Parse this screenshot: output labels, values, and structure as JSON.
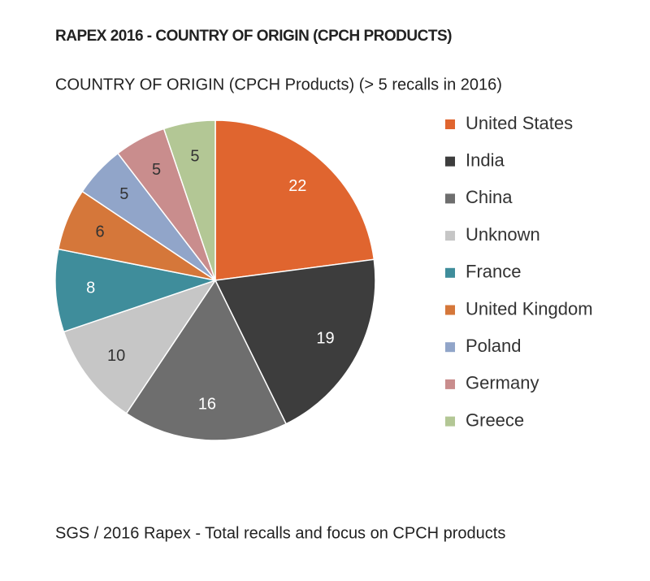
{
  "chart_data": {
    "type": "pie",
    "title": "RAPEX 2016 - COUNTRY OF ORIGIN (CPCH PRODUCTS)",
    "subtitle": "COUNTRY OF ORIGIN (CPCH Products) (> 5 recalls in 2016)",
    "caption": "SGS / 2016 Rapex - Total recalls and focus on CPCH products",
    "categories": [
      "United States",
      "India",
      "China",
      "Unknown",
      "France",
      "United Kingdom",
      "Poland",
      "Germany",
      "Greece"
    ],
    "values": [
      22,
      19,
      16,
      10,
      8,
      6,
      5,
      5,
      5
    ],
    "colors": [
      "#e0652f",
      "#3d3d3d",
      "#6e6e6e",
      "#c6c6c6",
      "#3f8d9b",
      "#d5773a",
      "#91a5c9",
      "#c98d8d",
      "#b3c795"
    ],
    "legend": "right"
  }
}
